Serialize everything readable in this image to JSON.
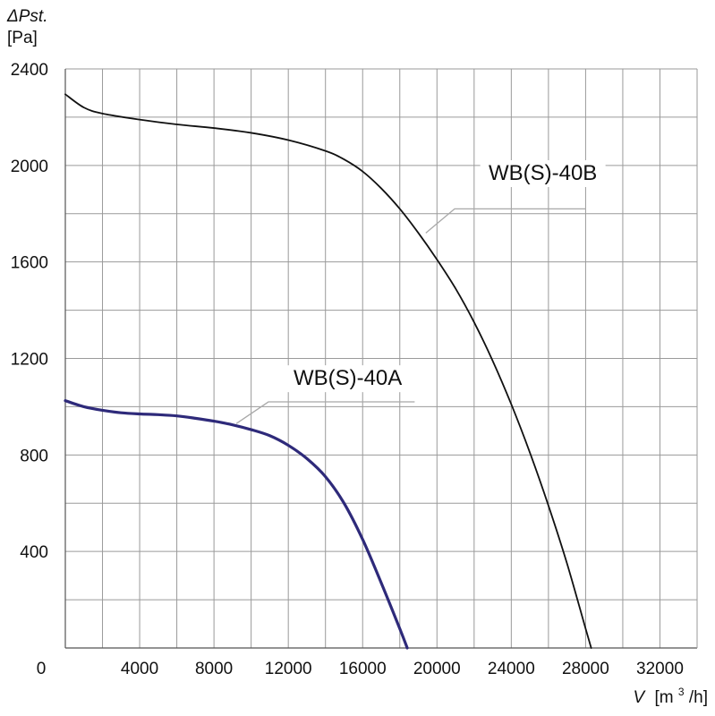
{
  "chart_data": {
    "type": "line",
    "ylabel_symbol": "ΔPst.",
    "ylabel_unit": "[Pa]",
    "xlabel_symbol": "V",
    "xlabel_unit_prefix": "[m",
    "xlabel_unit_sup": "3",
    "xlabel_unit_suffix": "/h]",
    "xlim": [
      0,
      34000
    ],
    "ylim": [
      0,
      2400
    ],
    "x_ticks": [
      0,
      4000,
      8000,
      12000,
      16000,
      20000,
      24000,
      28000,
      32000
    ],
    "y_ticks": [
      400,
      800,
      1200,
      1600,
      2000,
      2400
    ],
    "grid": true,
    "colors": {
      "grid": "#9a9a9a",
      "axis": "#555555",
      "leader": "#a8a8a8",
      "series_a": "#2e2a7a",
      "series_b": "#111111"
    },
    "series": [
      {
        "name": "WB(S)-40A",
        "color": "#2e2a7a",
        "x": [
          0,
          1000,
          2000,
          3000,
          4000,
          5000,
          6000,
          7000,
          8000,
          9000,
          10000,
          11000,
          12000,
          13000,
          14000,
          15000,
          16000,
          17000,
          18000,
          18400
        ],
        "y": [
          1025,
          1000,
          985,
          975,
          970,
          967,
          962,
          952,
          940,
          925,
          905,
          880,
          840,
          785,
          710,
          600,
          450,
          270,
          80,
          0
        ]
      },
      {
        "name": "WB(S)-40B",
        "color": "#111111",
        "x": [
          0,
          1000,
          2000,
          4000,
          6000,
          8000,
          10000,
          12000,
          14000,
          15000,
          16000,
          17000,
          18000,
          19000,
          20000,
          21000,
          22000,
          23000,
          24000,
          25000,
          26000,
          27000,
          28000,
          28300
        ],
        "y": [
          2295,
          2240,
          2215,
          2190,
          2170,
          2155,
          2135,
          2105,
          2060,
          2025,
          1975,
          1905,
          1820,
          1720,
          1610,
          1490,
          1350,
          1190,
          1010,
          810,
          590,
          350,
          80,
          0
        ]
      }
    ],
    "annotations": [
      {
        "text": "WB(S)-40B",
        "x": 25700,
        "y": 1940,
        "leader_start_x": 19400,
        "leader_start_y": 1720,
        "leader_end_x": 28000,
        "leader_end_y": 1820
      },
      {
        "text": "WB(S)-40A",
        "x": 15200,
        "y": 1090,
        "leader_start_x": 9200,
        "leader_start_y": 930,
        "leader_end_x": 18800,
        "leader_end_y": 1020
      }
    ]
  }
}
